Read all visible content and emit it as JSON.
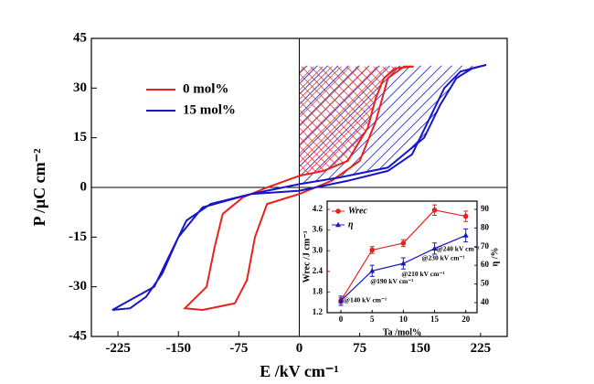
{
  "chart_data": [
    {
      "type": "line",
      "x_label": "E /kV cm⁻¹",
      "y_label": "P /μC cm⁻²",
      "xlim": [
        -258,
        258
      ],
      "ylim": [
        -45,
        45
      ],
      "xticks": [
        -225,
        -150,
        -75,
        0,
        75,
        150,
        225
      ],
      "yticks": [
        -45,
        -30,
        -15,
        0,
        15,
        30,
        45
      ],
      "legend": "upper left",
      "series": [
        {
          "name": "0 mol%",
          "color": "#e8211c",
          "x": [
            142,
            120,
            105,
            95,
            85,
            60,
            30,
            0,
            -40,
            -70,
            -95,
            -105,
            -115,
            -142,
            -120,
            -80,
            -65,
            -55,
            -40,
            0,
            40,
            75,
            95,
            110,
            130,
            142
          ],
          "values": [
            36.5,
            36,
            33,
            27,
            18,
            8,
            5,
            3.5,
            0,
            -3,
            -8,
            -18,
            -30,
            -36.5,
            -37,
            -35,
            -28,
            -15,
            -5,
            -2,
            2,
            8,
            20,
            33,
            36.5,
            36.5
          ]
        },
        {
          "name": "15 mol%",
          "color": "#1616c8",
          "x": [
            232,
            215,
            195,
            175,
            155,
            110,
            50,
            0,
            -60,
            -110,
            -140,
            -160,
            -180,
            -232,
            -210,
            -190,
            -170,
            -150,
            -120,
            -60,
            0,
            60,
            110,
            140,
            160,
            180,
            200,
            232
          ],
          "values": [
            37,
            36,
            33,
            25,
            15,
            6,
            3,
            1,
            -2,
            -5,
            -10,
            -20,
            -30,
            -37,
            -36.5,
            -33,
            -26,
            -15,
            -6,
            -2,
            -1,
            2,
            5,
            10,
            20,
            30,
            35,
            37
          ]
        }
      ]
    },
    {
      "type": "line",
      "x_label": "Ta /mol%",
      "y_label": "Wrec /J cm⁻³",
      "y2_label": "η /%",
      "x": [
        0,
        5,
        10,
        15,
        20
      ],
      "xlim": [
        -2.2,
        21.8
      ],
      "ylim": [
        1.2,
        4.44
      ],
      "y2lim": [
        34.6,
        94.4
      ],
      "xticks": [
        0,
        5,
        10,
        15,
        20
      ],
      "yticks": [
        1.2,
        1.8,
        2.4,
        {
          "value": 3,
          "label": "3.0"
        },
        3.6,
        4.2
      ],
      "y2ticks": [
        40,
        50,
        60,
        70,
        80,
        90
      ],
      "legend": "upper left",
      "series": [
        {
          "name": "Wrec",
          "color": "#e8211c",
          "marker": "circle",
          "values": [
            1.55,
            3.02,
            3.22,
            4.18,
            4.0
          ],
          "errors": [
            0.08,
            0.1,
            0.1,
            0.15,
            0.15
          ]
        },
        {
          "name": "η",
          "color": "#1616c8",
          "marker": "triangle",
          "axis": "y2",
          "values": [
            41,
            57,
            61,
            69,
            76
          ],
          "errors": [
            2.5,
            3,
            3,
            3,
            3.5
          ]
        }
      ],
      "annotations": [
        "@140 kV cm⁻¹",
        "@190 kV cm⁻¹",
        "@210 kV cm⁻¹",
        "@230 kV cm⁻¹",
        "@240 kV cm⁻¹"
      ]
    }
  ]
}
